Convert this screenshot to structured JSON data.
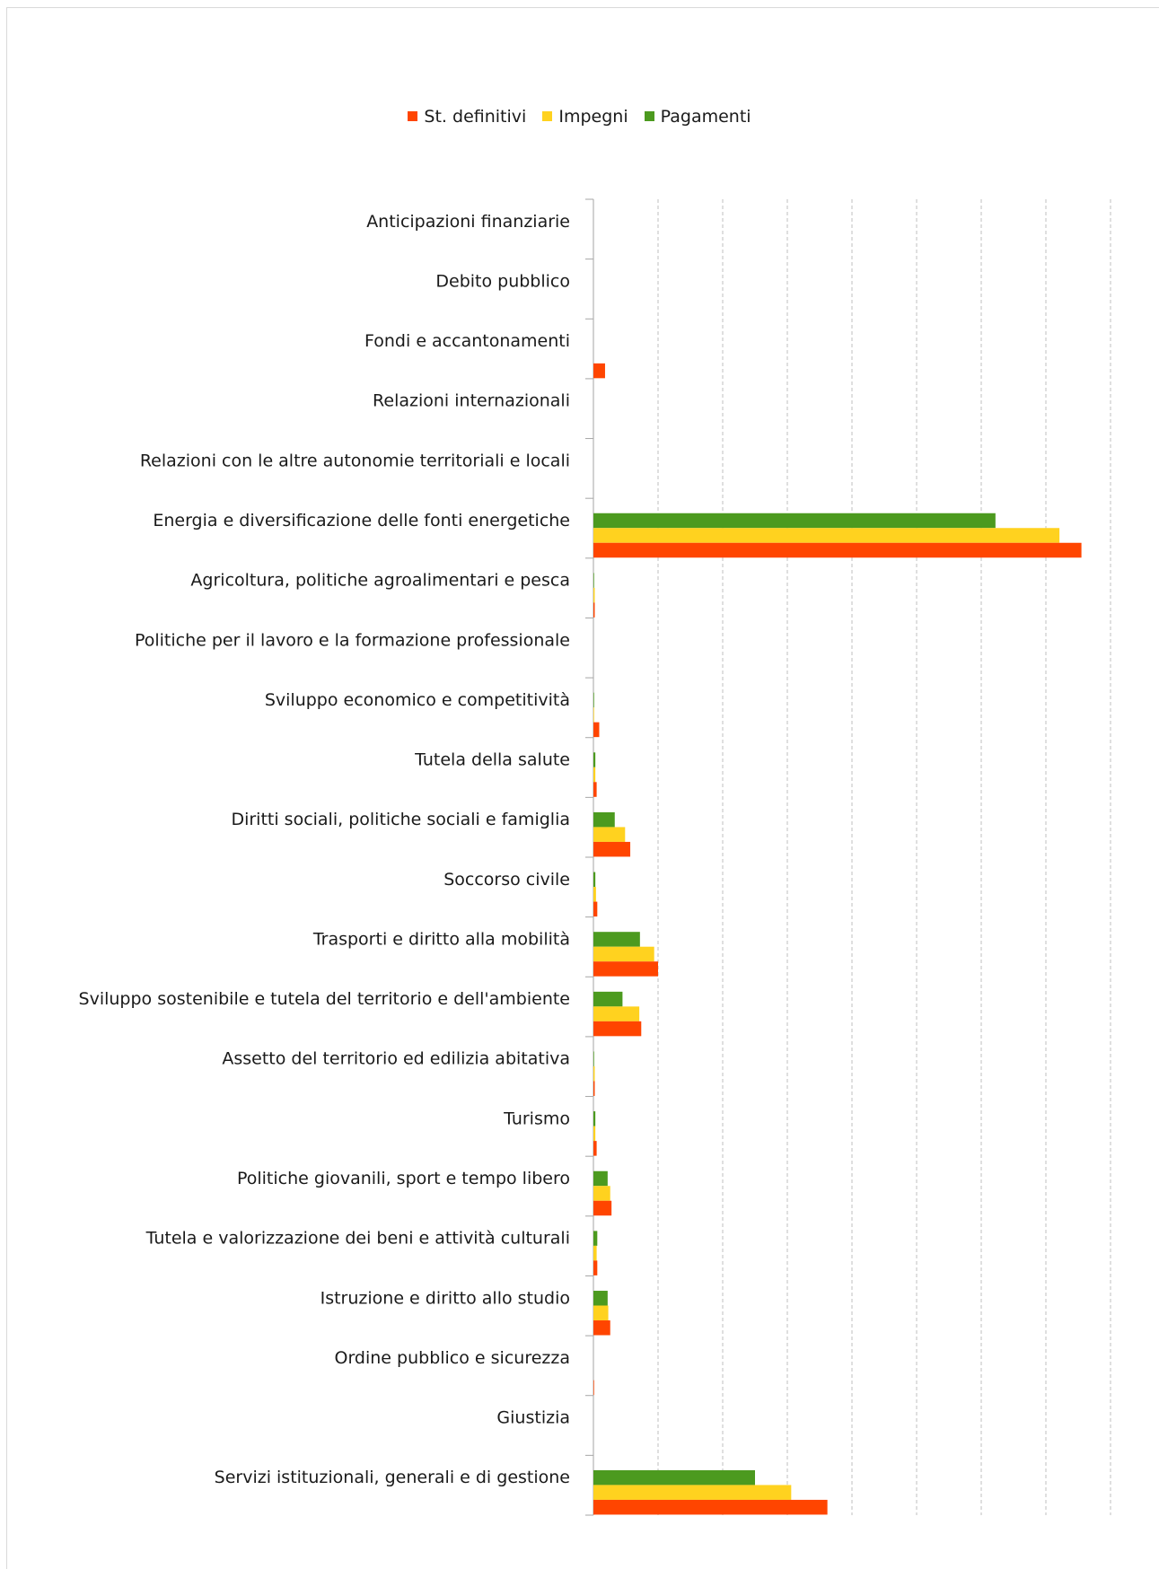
{
  "chart_data": {
    "type": "bar",
    "orientation": "horizontal",
    "categories": [
      "Anticipazioni finanziarie",
      "Debito pubblico",
      "Fondi e accantonamenti",
      "Relazioni internazionali",
      "Relazioni con le altre autonomie territoriali e locali",
      "Energia e diversificazione delle fonti energetiche",
      "Agricoltura, politiche agroalimentari e pesca",
      "Politiche per il lavoro e la formazione professionale",
      "Sviluppo economico e competitività",
      "Tutela della salute",
      "Diritti sociali, politiche sociali e famiglia",
      "Soccorso civile",
      "Trasporti e diritto alla mobilità",
      "Sviluppo sostenibile e tutela del territorio e dell'ambiente",
      "Assetto del territorio ed edilizia abitativa",
      "Turismo",
      "Politiche giovanili, sport e tempo libero",
      "Tutela e valorizzazione dei beni e attività culturali",
      "Istruzione e diritto allo studio",
      "Ordine pubblico e sicurezza",
      "Giustizia",
      "Servizi istituzionali, generali e di gestione"
    ],
    "series": [
      {
        "name": "St. definitivi",
        "color": "#ff4500",
        "values": [
          0,
          0,
          0.18,
          0,
          0,
          7.55,
          0.02,
          0,
          0.09,
          0.05,
          0.57,
          0.06,
          1.0,
          0.74,
          0.02,
          0.05,
          0.28,
          0.06,
          0.26,
          0.01,
          0,
          3.62
        ]
      },
      {
        "name": "Impegni",
        "color": "#ffd21f",
        "values": [
          0,
          0,
          0,
          0,
          0,
          7.21,
          0.02,
          0,
          0.01,
          0.03,
          0.49,
          0.04,
          0.94,
          0.71,
          0.02,
          0.03,
          0.26,
          0.05,
          0.23,
          0,
          0,
          3.06
        ]
      },
      {
        "name": "Pagamenti",
        "color": "#4c9a1f",
        "values": [
          0,
          0,
          0,
          0,
          0,
          6.22,
          0.01,
          0,
          0.01,
          0.03,
          0.33,
          0.03,
          0.72,
          0.45,
          0.01,
          0.03,
          0.22,
          0.06,
          0.22,
          0,
          0,
          2.5
        ]
      }
    ],
    "xlim": [
      0,
      8
    ],
    "grid": true,
    "legend": "top"
  }
}
